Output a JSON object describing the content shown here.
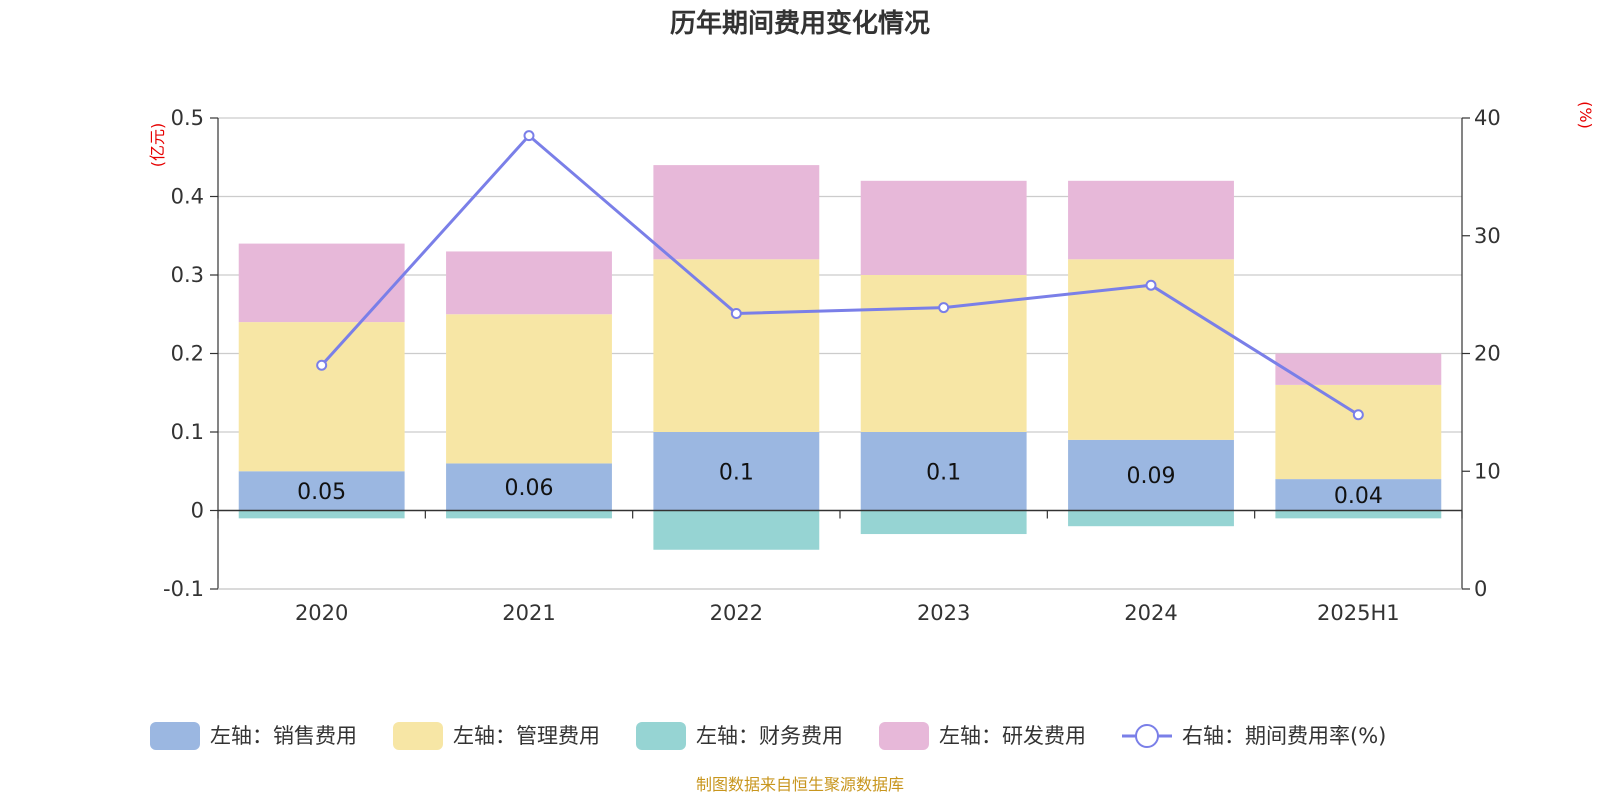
{
  "chart_data": {
    "type": "bar",
    "title": "历年期间费用变化情况",
    "categories": [
      "2020",
      "2021",
      "2022",
      "2023",
      "2024",
      "2025H1"
    ],
    "stacked": true,
    "left_axis": {
      "unit": "(亿元)",
      "ylim": [
        -0.1,
        0.5
      ],
      "ticks": [
        -0.1,
        0,
        0.1,
        0.2,
        0.3,
        0.4,
        0.5
      ],
      "tick_labels": [
        "-0.1",
        "0",
        "0.1",
        "0.2",
        "0.3",
        "0.4",
        "0.5"
      ]
    },
    "right_axis": {
      "unit": "(%)",
      "ylim": [
        0,
        40
      ],
      "ticks": [
        0,
        10,
        20,
        30,
        40
      ],
      "tick_labels": [
        "0",
        "10",
        "20",
        "30",
        "40"
      ]
    },
    "series": [
      {
        "name": "左轴：销售费用",
        "axis": "left",
        "type": "bar",
        "color": "#9bb7e1",
        "values": [
          0.05,
          0.06,
          0.1,
          0.1,
          0.09,
          0.04
        ],
        "labels": [
          "0.05",
          "0.06",
          "0.1",
          "0.1",
          "0.09",
          "0.04"
        ]
      },
      {
        "name": "左轴：管理费用",
        "axis": "left",
        "type": "bar",
        "color": "#f7e6a5",
        "values": [
          0.19,
          0.19,
          0.22,
          0.2,
          0.23,
          0.12
        ]
      },
      {
        "name": "左轴：财务费用",
        "axis": "left",
        "type": "bar",
        "color": "#96d4d3",
        "values": [
          -0.01,
          -0.01,
          -0.05,
          -0.03,
          -0.02,
          -0.01
        ]
      },
      {
        "name": "左轴：研发费用",
        "axis": "left",
        "type": "bar",
        "color": "#e7b8d9",
        "values": [
          0.1,
          0.08,
          0.12,
          0.12,
          0.1,
          0.04
        ]
      },
      {
        "name": "右轴：期间费用率(%)",
        "axis": "right",
        "type": "line",
        "color": "#7a7fe8",
        "values": [
          19.0,
          38.5,
          23.4,
          23.9,
          25.8,
          14.8
        ]
      }
    ],
    "grid": true,
    "legend_position": "bottom"
  },
  "source_note": "制图数据来自恒生聚源数据库"
}
